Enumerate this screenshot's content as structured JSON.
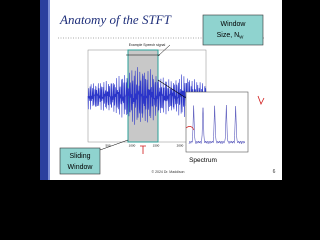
{
  "slide": {
    "title": "Anatomy of the STFT",
    "plot_title": "Example Speech signal",
    "x_ticks": [
      "500",
      "1000",
      "1500",
      "2000"
    ],
    "callout_window": {
      "lines": [
        "Window",
        "Size, N"
      ],
      "sub": "W"
    },
    "callout_sliding": {
      "lines": [
        "Sliding",
        "Window"
      ]
    },
    "spectrum_label": "Spectrum",
    "footer": "© 2024 Dr. Maddison",
    "page_number": "6"
  }
}
